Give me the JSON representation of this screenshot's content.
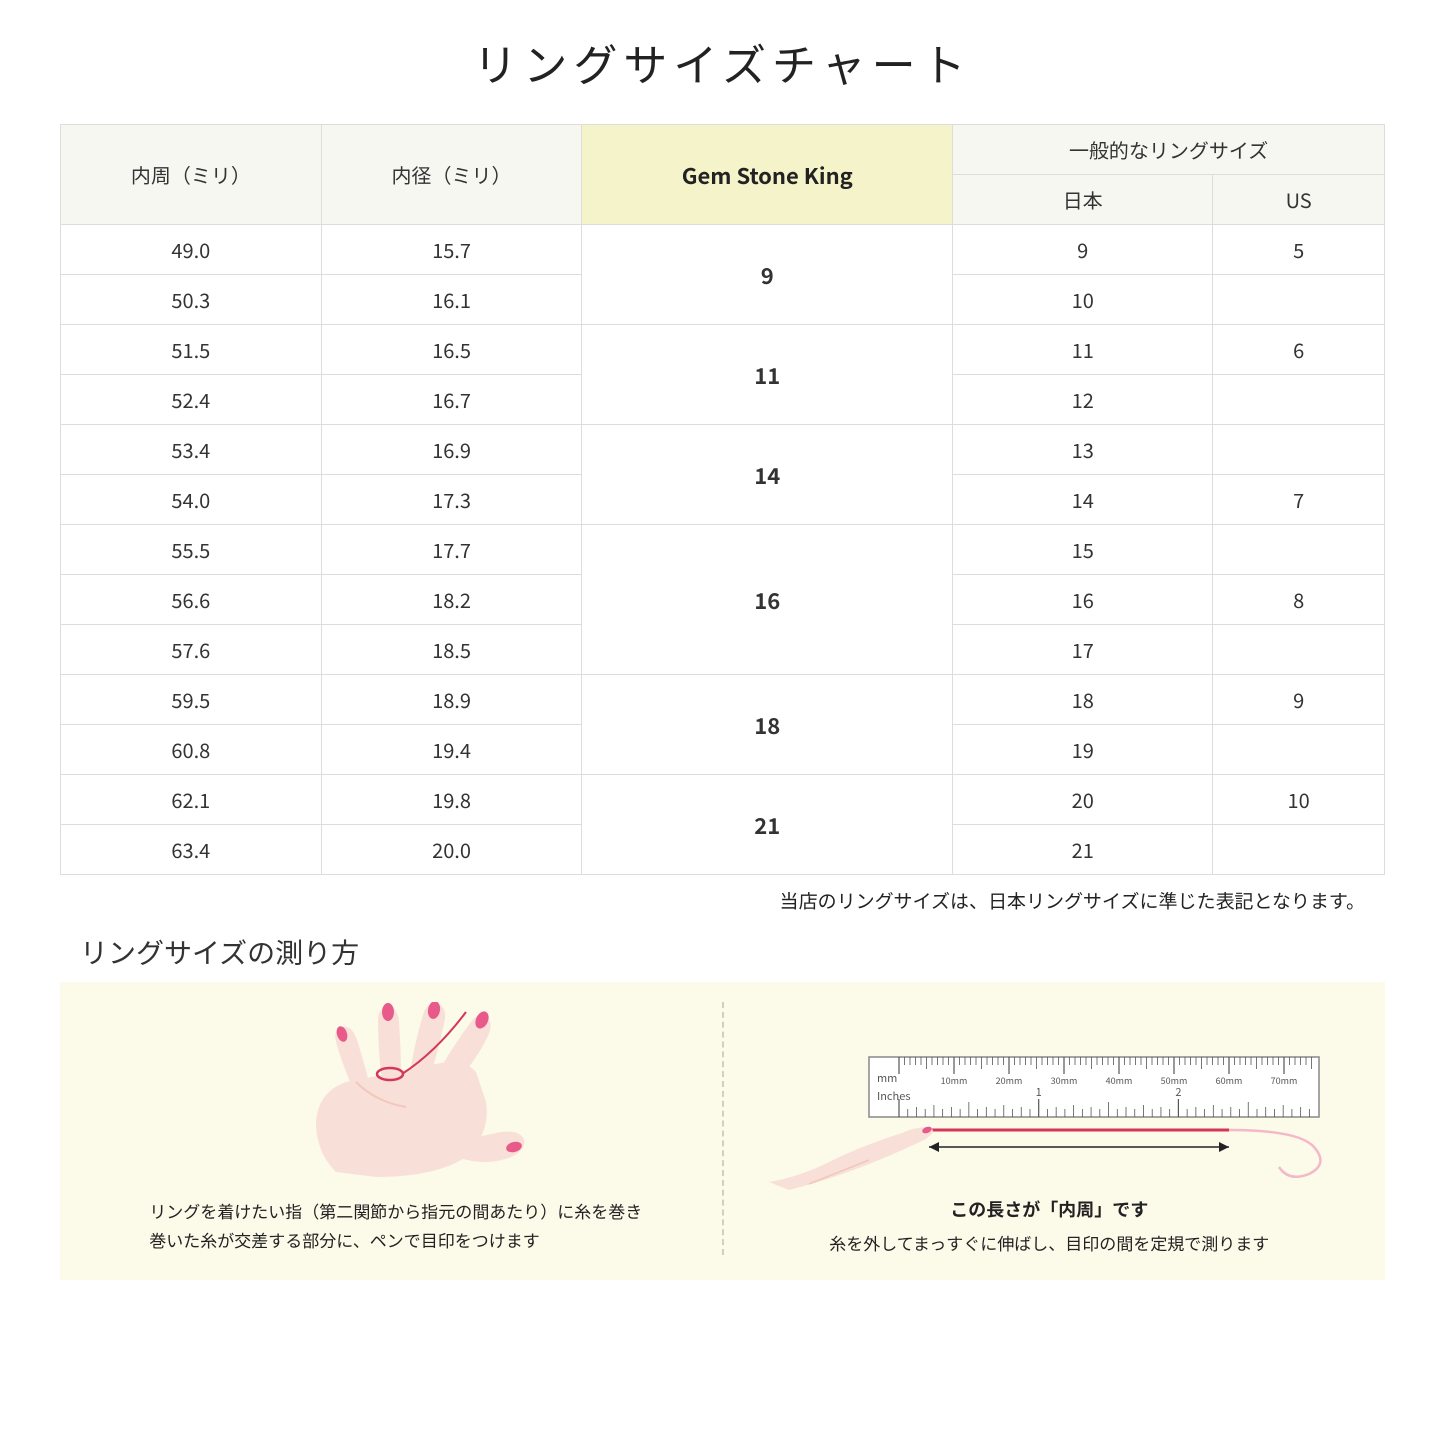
{
  "title": "リングサイズチャート",
  "table": {
    "headers": {
      "circumference": "内周（ミリ）",
      "diameter": "内径（ミリ）",
      "gsk": "Gem Stone King",
      "general": "一般的なリングサイズ",
      "japan": "日本",
      "us": "US"
    },
    "groups": [
      {
        "gsk": "9",
        "rows": [
          {
            "c": "49.0",
            "d": "15.7",
            "jp": "9",
            "us": "5"
          },
          {
            "c": "50.3",
            "d": "16.1",
            "jp": "10",
            "us": ""
          }
        ]
      },
      {
        "gsk": "11",
        "rows": [
          {
            "c": "51.5",
            "d": "16.5",
            "jp": "11",
            "us": "6"
          },
          {
            "c": "52.4",
            "d": "16.7",
            "jp": "12",
            "us": ""
          }
        ]
      },
      {
        "gsk": "14",
        "rows": [
          {
            "c": "53.4",
            "d": "16.9",
            "jp": "13",
            "us": ""
          },
          {
            "c": "54.0",
            "d": "17.3",
            "jp": "14",
            "us": "7"
          }
        ]
      },
      {
        "gsk": "16",
        "rows": [
          {
            "c": "55.5",
            "d": "17.7",
            "jp": "15",
            "us": ""
          },
          {
            "c": "56.6",
            "d": "18.2",
            "jp": "16",
            "us": "8"
          },
          {
            "c": "57.6",
            "d": "18.5",
            "jp": "17",
            "us": ""
          }
        ]
      },
      {
        "gsk": "18",
        "rows": [
          {
            "c": "59.5",
            "d": "18.9",
            "jp": "18",
            "us": "9"
          },
          {
            "c": "60.8",
            "d": "19.4",
            "jp": "19",
            "us": ""
          }
        ]
      },
      {
        "gsk": "21",
        "rows": [
          {
            "c": "62.1",
            "d": "19.8",
            "jp": "20",
            "us": "10"
          },
          {
            "c": "63.4",
            "d": "20.0",
            "jp": "21",
            "us": ""
          }
        ]
      }
    ]
  },
  "note": "当店のリングサイズは、日本リングサイズに準じた表記となります。",
  "howto": {
    "title": "リングサイズの測り方",
    "left_line1": "リングを着けたい指（第二関節から指元の間あたり）に糸を巻き",
    "left_line2": "巻いた糸が交差する部分に、ペンで目印をつけます",
    "right_measure_label": "この長さが「内周」です",
    "right_text": "糸を外してまっすぐに伸ばし、目印の間を定規で測ります",
    "ruler": {
      "mm_label": "mm",
      "inches_label": "Inches",
      "mm_ticks": [
        "10mm",
        "20mm",
        "30mm",
        "40mm",
        "50mm",
        "60mm",
        "70mm"
      ],
      "inch_ticks": [
        "1",
        "2"
      ]
    }
  },
  "colors": {
    "header_bg": "#f7f7f2",
    "highlight_bg": "#f4f3c9",
    "border": "#dddddd",
    "howto_bg": "#fcfae9",
    "thread": "#d4365a",
    "skin": "#f8e0d8",
    "skin_shadow": "#f0c8bc",
    "nail": "#e85a8a"
  }
}
